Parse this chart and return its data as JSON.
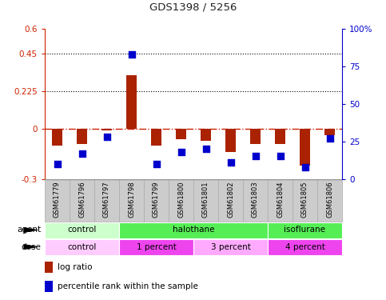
{
  "title": "GDS1398 / 5256",
  "samples": [
    "GSM61779",
    "GSM61796",
    "GSM61797",
    "GSM61798",
    "GSM61799",
    "GSM61800",
    "GSM61801",
    "GSM61802",
    "GSM61803",
    "GSM61804",
    "GSM61805",
    "GSM61806"
  ],
  "log_ratio": [
    -0.1,
    -0.09,
    -0.01,
    0.32,
    -0.1,
    -0.06,
    -0.07,
    -0.14,
    -0.09,
    -0.09,
    -0.22,
    -0.04
  ],
  "percentile_rank": [
    10,
    17,
    28,
    83,
    10,
    18,
    20,
    11,
    15,
    15,
    8,
    27
  ],
  "ylim_left": [
    -0.3,
    0.6
  ],
  "ylim_right": [
    0,
    100
  ],
  "yticks_left": [
    -0.3,
    0,
    0.225,
    0.45,
    0.6
  ],
  "yticks_right": [
    0,
    25,
    50,
    75,
    100
  ],
  "hlines": [
    0.225,
    0.45
  ],
  "agent_groups": [
    {
      "label": "control",
      "start": 0,
      "end": 3,
      "color": "#ccffcc"
    },
    {
      "label": "halothane",
      "start": 3,
      "end": 9,
      "color": "#55ee55"
    },
    {
      "label": "isoflurane",
      "start": 9,
      "end": 12,
      "color": "#55ee55"
    }
  ],
  "dose_groups": [
    {
      "label": "control",
      "start": 0,
      "end": 3,
      "color": "#ffccff"
    },
    {
      "label": "1 percent",
      "start": 3,
      "end": 6,
      "color": "#ee44ee"
    },
    {
      "label": "3 percent",
      "start": 6,
      "end": 9,
      "color": "#ffaaff"
    },
    {
      "label": "4 percent",
      "start": 9,
      "end": 12,
      "color": "#ee44ee"
    }
  ],
  "bar_color": "#aa2200",
  "dot_color": "#0000cc",
  "bar_width": 0.45,
  "dot_size": 28,
  "left_axis_color": "#cc2200",
  "right_axis_color": "#0000cc",
  "zero_line_color": "#cc2200",
  "sample_box_color": "#cccccc",
  "sample_box_edge": "#aaaaaa"
}
